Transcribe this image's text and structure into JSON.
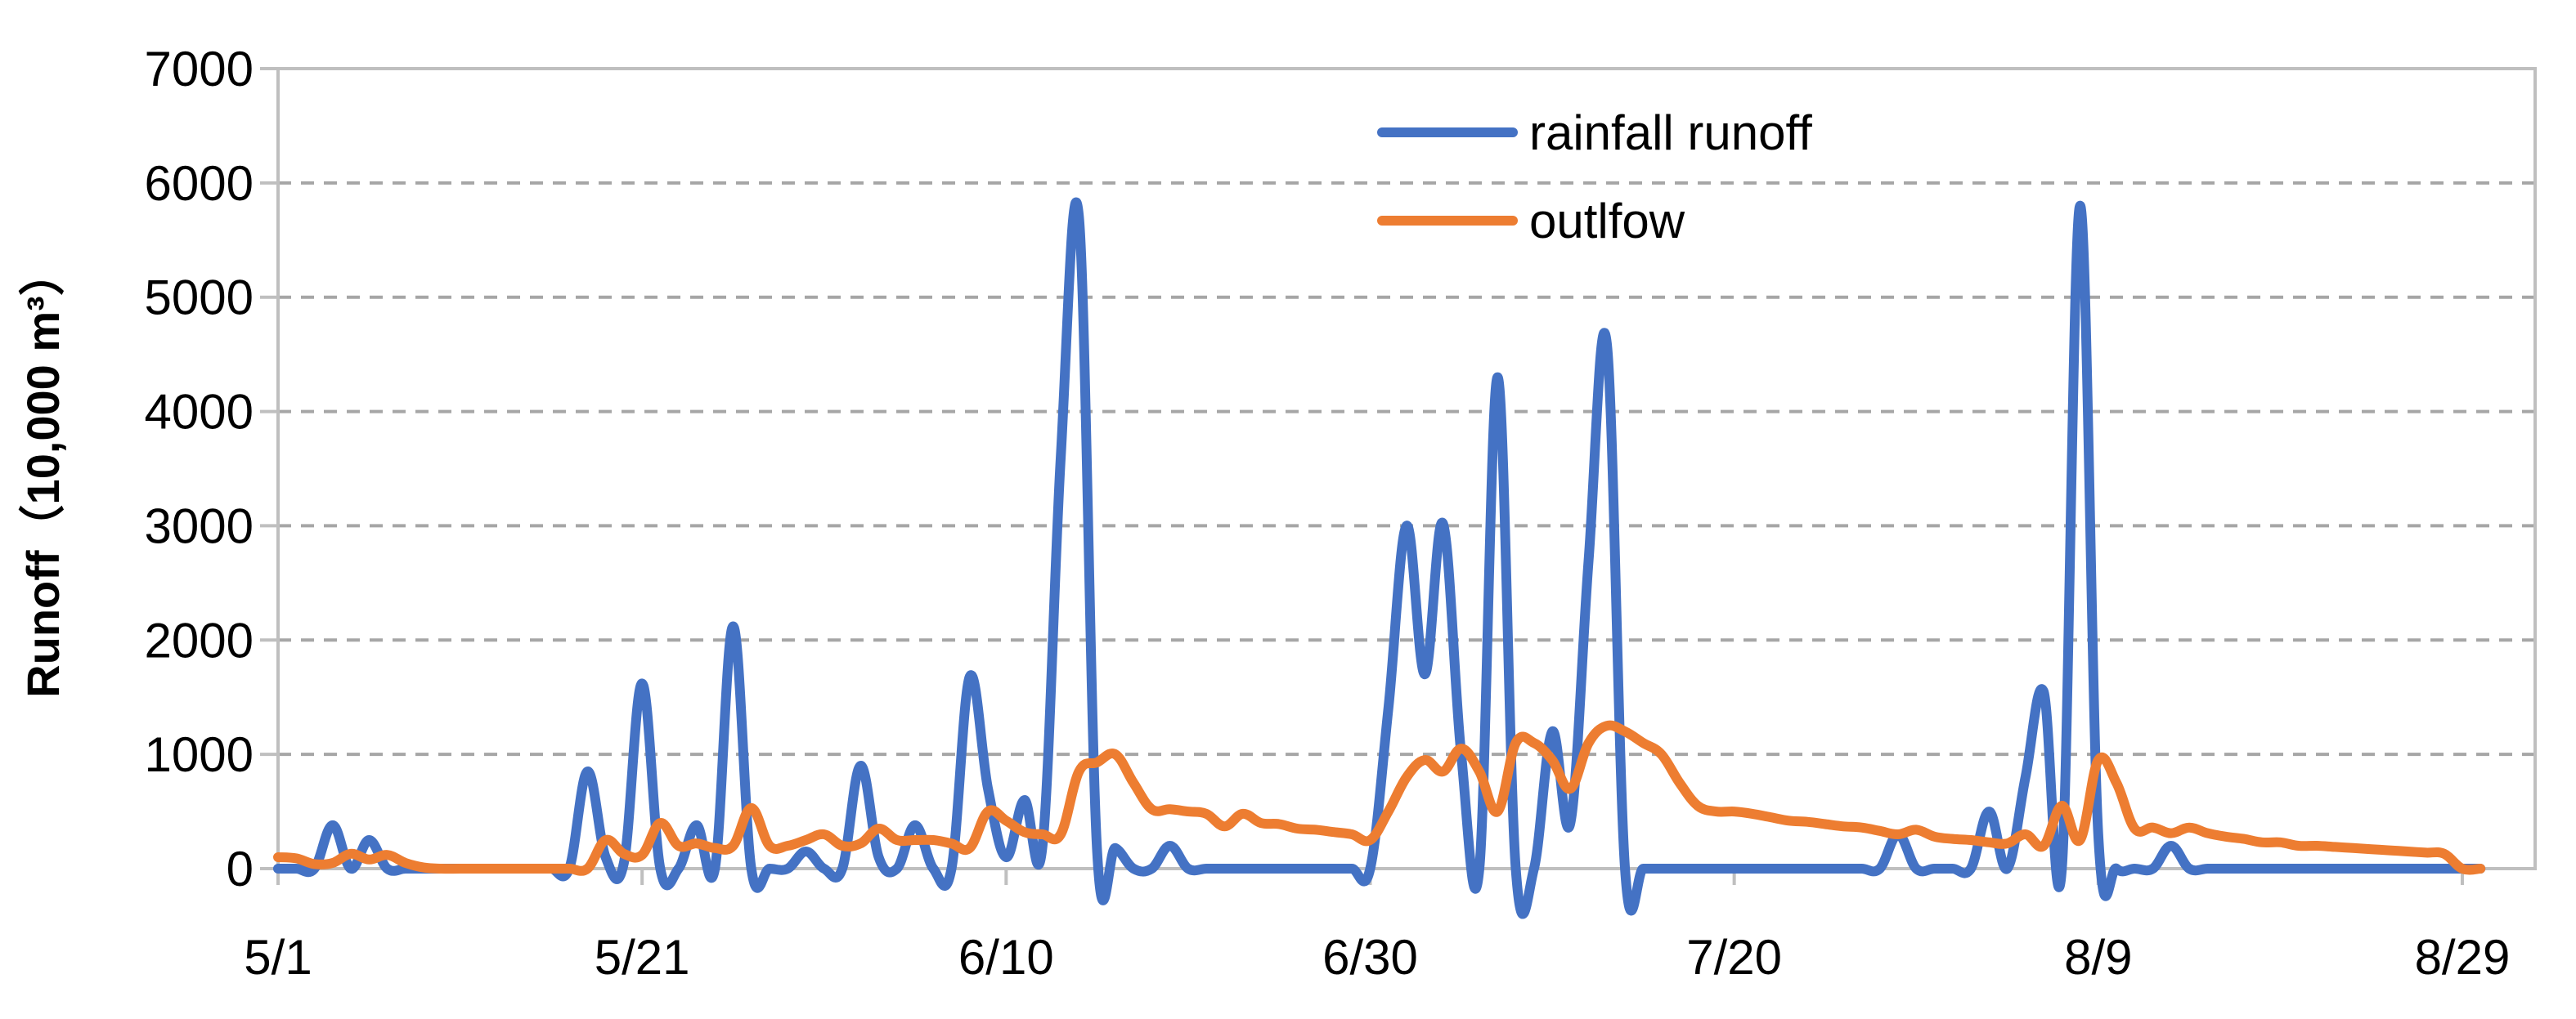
{
  "chart_data": {
    "type": "line",
    "title": "",
    "xlabel": "",
    "ylabel": "Runoff（10,000 m³）",
    "ylim": [
      0,
      7000
    ],
    "yticks": [
      0,
      1000,
      2000,
      3000,
      4000,
      5000,
      6000,
      7000
    ],
    "xtick_labels": [
      "5/1",
      "5/21",
      "6/10",
      "6/30",
      "7/20",
      "8/9",
      "8/29"
    ],
    "x_domain": [
      "5/1",
      "9/2"
    ],
    "grid": "horizontal dashed",
    "legend": "top-center",
    "series": [
      {
        "name": "rainfall runoff",
        "color": "#4472C4",
        "points": [
          [
            "5/1",
            0
          ],
          [
            "5/2",
            0
          ],
          [
            "5/3",
            0
          ],
          [
            "5/4",
            380
          ],
          [
            "5/5",
            0
          ],
          [
            "5/6",
            250
          ],
          [
            "5/7",
            0
          ],
          [
            "5/8",
            0
          ],
          [
            "5/9",
            0
          ],
          [
            "5/10",
            0
          ],
          [
            "5/11",
            0
          ],
          [
            "5/12",
            0
          ],
          [
            "5/13",
            0
          ],
          [
            "5/14",
            0
          ],
          [
            "5/15",
            0
          ],
          [
            "5/16",
            0
          ],
          [
            "5/17",
            0
          ],
          [
            "5/18",
            850
          ],
          [
            "5/19",
            100
          ],
          [
            "5/20",
            50
          ],
          [
            "5/21",
            1620
          ],
          [
            "5/22",
            0
          ],
          [
            "5/23",
            0
          ],
          [
            "5/24",
            380
          ],
          [
            "5/25",
            0
          ],
          [
            "5/26",
            2120
          ],
          [
            "5/27",
            0
          ],
          [
            "5/28",
            0
          ],
          [
            "5/29",
            0
          ],
          [
            "5/30",
            150
          ],
          [
            "5/31",
            0
          ],
          [
            "6/1",
            0
          ],
          [
            "6/2",
            900
          ],
          [
            "6/3",
            100
          ],
          [
            "6/4",
            0
          ],
          [
            "6/5",
            380
          ],
          [
            "6/6",
            0
          ],
          [
            "6/7",
            0
          ],
          [
            "6/8",
            1680
          ],
          [
            "6/9",
            700
          ],
          [
            "6/10",
            100
          ],
          [
            "6/11",
            600
          ],
          [
            "6/12",
            200
          ],
          [
            "6/13",
            3600
          ],
          [
            "6/14",
            5700
          ],
          [
            "6/15",
            150
          ],
          [
            "6/16",
            180
          ],
          [
            "6/17",
            0
          ],
          [
            "6/18",
            0
          ],
          [
            "6/19",
            200
          ],
          [
            "6/20",
            0
          ],
          [
            "6/21",
            0
          ],
          [
            "6/22",
            0
          ],
          [
            "6/23",
            0
          ],
          [
            "6/24",
            0
          ],
          [
            "6/25",
            0
          ],
          [
            "6/26",
            0
          ],
          [
            "6/27",
            0
          ],
          [
            "6/28",
            0
          ],
          [
            "6/29",
            0
          ],
          [
            "6/30",
            0
          ],
          [
            "7/1",
            1400
          ],
          [
            "7/2",
            3000
          ],
          [
            "7/3",
            1700
          ],
          [
            "7/4",
            3020
          ],
          [
            "7/5",
            1000
          ],
          [
            "7/6",
            0
          ],
          [
            "7/7",
            4300
          ],
          [
            "7/8",
            0
          ],
          [
            "7/9",
            0
          ],
          [
            "7/10",
            1200
          ],
          [
            "7/11",
            400
          ],
          [
            "7/12",
            2700
          ],
          [
            "7/13",
            4600
          ],
          [
            "7/14",
            0
          ],
          [
            "7/15",
            0
          ],
          [
            "7/16",
            0
          ],
          [
            "7/17",
            0
          ],
          [
            "7/18",
            0
          ],
          [
            "7/19",
            0
          ],
          [
            "7/20",
            0
          ],
          [
            "7/21",
            0
          ],
          [
            "7/22",
            0
          ],
          [
            "7/23",
            0
          ],
          [
            "7/24",
            0
          ],
          [
            "7/25",
            0
          ],
          [
            "7/26",
            0
          ],
          [
            "7/27",
            0
          ],
          [
            "7/28",
            0
          ],
          [
            "7/29",
            300
          ],
          [
            "7/30",
            0
          ],
          [
            "7/31",
            0
          ],
          [
            "8/1",
            0
          ],
          [
            "8/2",
            0
          ],
          [
            "8/3",
            500
          ],
          [
            "8/4",
            0
          ],
          [
            "8/5",
            800
          ],
          [
            "8/6",
            1550
          ],
          [
            "8/7",
            0
          ],
          [
            "8/8",
            5800
          ],
          [
            "8/9",
            300
          ],
          [
            "8/10",
            0
          ],
          [
            "8/11",
            0
          ],
          [
            "8/12",
            0
          ],
          [
            "8/13",
            200
          ],
          [
            "8/14",
            0
          ],
          [
            "8/15",
            0
          ],
          [
            "8/16",
            0
          ],
          [
            "8/17",
            0
          ],
          [
            "8/18",
            0
          ],
          [
            "8/19",
            0
          ],
          [
            "8/20",
            0
          ],
          [
            "8/21",
            0
          ],
          [
            "8/22",
            0
          ],
          [
            "8/23",
            0
          ],
          [
            "8/24",
            0
          ],
          [
            "8/25",
            0
          ],
          [
            "8/26",
            0
          ],
          [
            "8/27",
            0
          ],
          [
            "8/28",
            0
          ],
          [
            "8/29",
            0
          ],
          [
            "8/30",
            0
          ]
        ]
      },
      {
        "name": "outlfow",
        "color": "#ED7D31",
        "points": [
          [
            "5/1",
            100
          ],
          [
            "5/2",
            90
          ],
          [
            "5/3",
            40
          ],
          [
            "5/4",
            50
          ],
          [
            "5/5",
            130
          ],
          [
            "5/6",
            80
          ],
          [
            "5/7",
            120
          ],
          [
            "5/8",
            50
          ],
          [
            "5/9",
            10
          ],
          [
            "5/10",
            0
          ],
          [
            "5/11",
            0
          ],
          [
            "5/12",
            0
          ],
          [
            "5/13",
            0
          ],
          [
            "5/14",
            0
          ],
          [
            "5/15",
            0
          ],
          [
            "5/16",
            0
          ],
          [
            "5/17",
            0
          ],
          [
            "5/18",
            0
          ],
          [
            "5/19",
            250
          ],
          [
            "5/20",
            130
          ],
          [
            "5/21",
            120
          ],
          [
            "5/22",
            400
          ],
          [
            "5/23",
            200
          ],
          [
            "5/24",
            220
          ],
          [
            "5/25",
            180
          ],
          [
            "5/26",
            200
          ],
          [
            "5/27",
            530
          ],
          [
            "5/28",
            200
          ],
          [
            "5/29",
            200
          ],
          [
            "5/30",
            250
          ],
          [
            "5/31",
            300
          ],
          [
            "6/1",
            200
          ],
          [
            "6/2",
            220
          ],
          [
            "6/3",
            350
          ],
          [
            "6/4",
            250
          ],
          [
            "6/5",
            250
          ],
          [
            "6/6",
            250
          ],
          [
            "6/7",
            220
          ],
          [
            "6/8",
            180
          ],
          [
            "6/9",
            500
          ],
          [
            "6/10",
            420
          ],
          [
            "6/11",
            320
          ],
          [
            "6/12",
            300
          ],
          [
            "6/13",
            300
          ],
          [
            "6/14",
            850
          ],
          [
            "6/15",
            930
          ],
          [
            "6/16",
            1000
          ],
          [
            "6/17",
            750
          ],
          [
            "6/18",
            520
          ],
          [
            "6/19",
            520
          ],
          [
            "6/20",
            500
          ],
          [
            "6/21",
            480
          ],
          [
            "6/22",
            370
          ],
          [
            "6/23",
            480
          ],
          [
            "6/24",
            400
          ],
          [
            "6/25",
            390
          ],
          [
            "6/26",
            350
          ],
          [
            "6/27",
            340
          ],
          [
            "6/28",
            320
          ],
          [
            "6/29",
            300
          ],
          [
            "6/30",
            250
          ],
          [
            "7/1",
            500
          ],
          [
            "7/2",
            800
          ],
          [
            "7/3",
            950
          ],
          [
            "7/4",
            850
          ],
          [
            "7/5",
            1050
          ],
          [
            "7/6",
            850
          ],
          [
            "7/7",
            500
          ],
          [
            "7/8",
            1100
          ],
          [
            "7/9",
            1100
          ],
          [
            "7/10",
            950
          ],
          [
            "7/11",
            700
          ],
          [
            "7/12",
            1100
          ],
          [
            "7/13",
            1250
          ],
          [
            "7/14",
            1200
          ],
          [
            "7/15",
            1100
          ],
          [
            "7/16",
            1000
          ],
          [
            "7/17",
            750
          ],
          [
            "7/18",
            550
          ],
          [
            "7/19",
            500
          ],
          [
            "7/20",
            500
          ],
          [
            "7/21",
            480
          ],
          [
            "7/22",
            450
          ],
          [
            "7/23",
            420
          ],
          [
            "7/24",
            410
          ],
          [
            "7/25",
            390
          ],
          [
            "7/26",
            370
          ],
          [
            "7/27",
            360
          ],
          [
            "7/28",
            330
          ],
          [
            "7/29",
            300
          ],
          [
            "7/30",
            340
          ],
          [
            "7/31",
            280
          ],
          [
            "8/1",
            260
          ],
          [
            "8/2",
            250
          ],
          [
            "8/3",
            230
          ],
          [
            "8/4",
            220
          ],
          [
            "8/5",
            300
          ],
          [
            "8/6",
            200
          ],
          [
            "8/7",
            550
          ],
          [
            "8/8",
            250
          ],
          [
            "8/9",
            950
          ],
          [
            "8/10",
            750
          ],
          [
            "8/11",
            350
          ],
          [
            "8/12",
            360
          ],
          [
            "8/13",
            310
          ],
          [
            "8/14",
            360
          ],
          [
            "8/15",
            310
          ],
          [
            "8/16",
            280
          ],
          [
            "8/17",
            260
          ],
          [
            "8/18",
            230
          ],
          [
            "8/19",
            230
          ],
          [
            "8/20",
            200
          ],
          [
            "8/21",
            200
          ],
          [
            "8/22",
            190
          ],
          [
            "8/23",
            180
          ],
          [
            "8/24",
            170
          ],
          [
            "8/25",
            160
          ],
          [
            "8/26",
            150
          ],
          [
            "8/27",
            140
          ],
          [
            "8/28",
            130
          ],
          [
            "8/29",
            0
          ],
          [
            "8/30",
            0
          ]
        ]
      }
    ]
  }
}
